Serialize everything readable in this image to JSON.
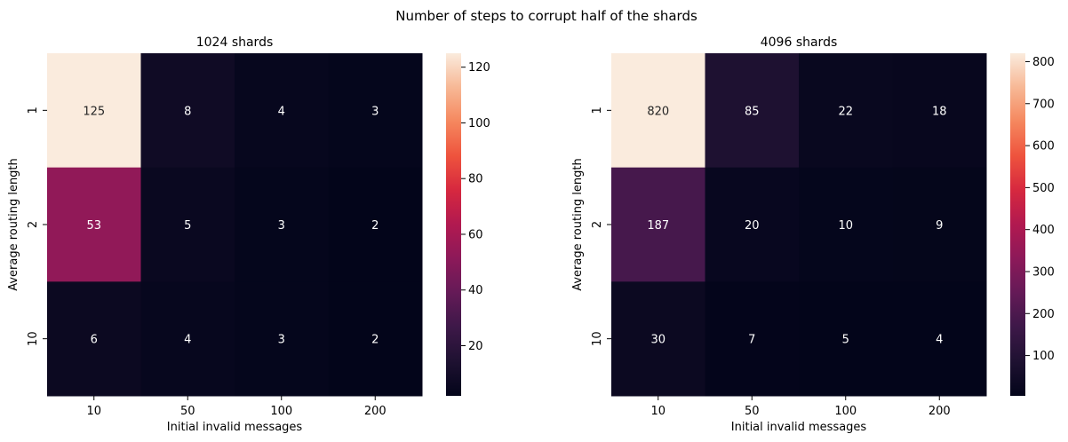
{
  "figure": {
    "suptitle": "Number of steps to corrupt half of the shards"
  },
  "chart_data": [
    {
      "type": "heatmap",
      "title": "1024 shards",
      "xlabel": "Initial invalid messages",
      "ylabel": "Average routing length",
      "x_categories": [
        "10",
        "50",
        "100",
        "200"
      ],
      "y_categories": [
        "1",
        "2",
        "10"
      ],
      "values": [
        [
          125,
          8,
          4,
          3
        ],
        [
          53,
          5,
          3,
          2
        ],
        [
          6,
          4,
          3,
          2
        ]
      ],
      "colormap": "rocket",
      "colorbar": {
        "range": [
          2,
          125
        ],
        "ticks": [
          20,
          40,
          60,
          80,
          100,
          120
        ]
      }
    },
    {
      "type": "heatmap",
      "title": "4096 shards",
      "xlabel": "Initial invalid messages",
      "ylabel": "Average routing length",
      "x_categories": [
        "10",
        "50",
        "100",
        "200"
      ],
      "y_categories": [
        "1",
        "2",
        "10"
      ],
      "values": [
        [
          820,
          85,
          22,
          18
        ],
        [
          187,
          20,
          10,
          9
        ],
        [
          30,
          7,
          5,
          4
        ]
      ],
      "colormap": "rocket",
      "colorbar": {
        "range": [
          4,
          820
        ],
        "ticks": [
          100,
          200,
          300,
          400,
          500,
          600,
          700,
          800
        ]
      }
    }
  ]
}
